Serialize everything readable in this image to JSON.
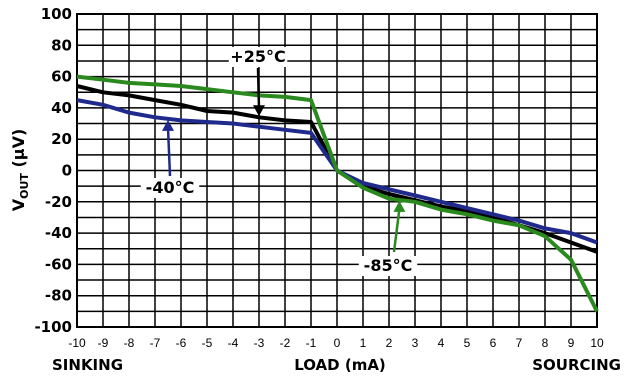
{
  "chart_data": {
    "type": "line",
    "xlabel": "LOAD (mA)",
    "ylabel": {
      "main": "V",
      "subscript": "OUT",
      "unit": " (µV)"
    },
    "x_left_label": "SINKING",
    "x_right_label": "SOURCING",
    "xlim": [
      -10,
      10
    ],
    "ylim": [
      -100,
      100
    ],
    "x_ticks": [
      "-10",
      "-9",
      "-8",
      "-7",
      "-6",
      "-5",
      "-4",
      "-3",
      "-2",
      "-1",
      "0",
      "1",
      "2",
      "3",
      "4",
      "5",
      "6",
      "7",
      "8",
      "9",
      "10"
    ],
    "y_ticks": [
      "100",
      "80",
      "60",
      "40",
      "20",
      "0",
      "-20",
      "-40",
      "-60",
      "-80",
      "-100"
    ],
    "grid": true,
    "series": [
      {
        "name": "+25°C",
        "color": "#000000",
        "points": [
          [
            -10,
            54
          ],
          [
            -9,
            50
          ],
          [
            -8,
            48
          ],
          [
            -7,
            45
          ],
          [
            -6,
            42
          ],
          [
            -5,
            38
          ],
          [
            -4,
            37
          ],
          [
            -3,
            34
          ],
          [
            -2,
            32
          ],
          [
            -1,
            31
          ],
          [
            0,
            0
          ],
          [
            1,
            -10
          ],
          [
            2,
            -15
          ],
          [
            3,
            -19
          ],
          [
            4,
            -23
          ],
          [
            5,
            -26
          ],
          [
            6,
            -30
          ],
          [
            7,
            -35
          ],
          [
            8,
            -40
          ],
          [
            9,
            -46
          ],
          [
            10,
            -52
          ]
        ]
      },
      {
        "name": "-40°C",
        "color": "#1f2a8c",
        "points": [
          [
            -10,
            45
          ],
          [
            -9,
            42
          ],
          [
            -8,
            37
          ],
          [
            -7,
            34
          ],
          [
            -6,
            32
          ],
          [
            -5,
            31
          ],
          [
            -4,
            30
          ],
          [
            -3,
            28
          ],
          [
            -2,
            26
          ],
          [
            -1,
            24
          ],
          [
            0,
            0
          ],
          [
            1,
            -8
          ],
          [
            2,
            -12
          ],
          [
            3,
            -16
          ],
          [
            4,
            -20
          ],
          [
            5,
            -24
          ],
          [
            6,
            -28
          ],
          [
            7,
            -32
          ],
          [
            8,
            -37
          ],
          [
            9,
            -40
          ],
          [
            10,
            -46
          ]
        ]
      },
      {
        "name": "-85°C",
        "color": "#2a8a1e",
        "points": [
          [
            -10,
            60
          ],
          [
            -9,
            58
          ],
          [
            -8,
            56
          ],
          [
            -7,
            55
          ],
          [
            -6,
            54
          ],
          [
            -5,
            52
          ],
          [
            -4,
            50
          ],
          [
            -3,
            48
          ],
          [
            -2,
            47
          ],
          [
            -1,
            45
          ],
          [
            0,
            0
          ],
          [
            1,
            -11
          ],
          [
            2,
            -18
          ],
          [
            3,
            -20
          ],
          [
            4,
            -25
          ],
          [
            5,
            -28
          ],
          [
            6,
            -32
          ],
          [
            7,
            -35
          ],
          [
            8,
            -42
          ],
          [
            9,
            -57
          ],
          [
            10,
            -90
          ]
        ]
      }
    ],
    "annotations": [
      {
        "text": "+25°C",
        "series": "+25°C",
        "at_x": -3
      },
      {
        "text": "-40°C",
        "series": "-40°C",
        "at_x": -6.5
      },
      {
        "text": "-85°C",
        "series": "-85°C",
        "at_x": 2.4
      }
    ]
  }
}
